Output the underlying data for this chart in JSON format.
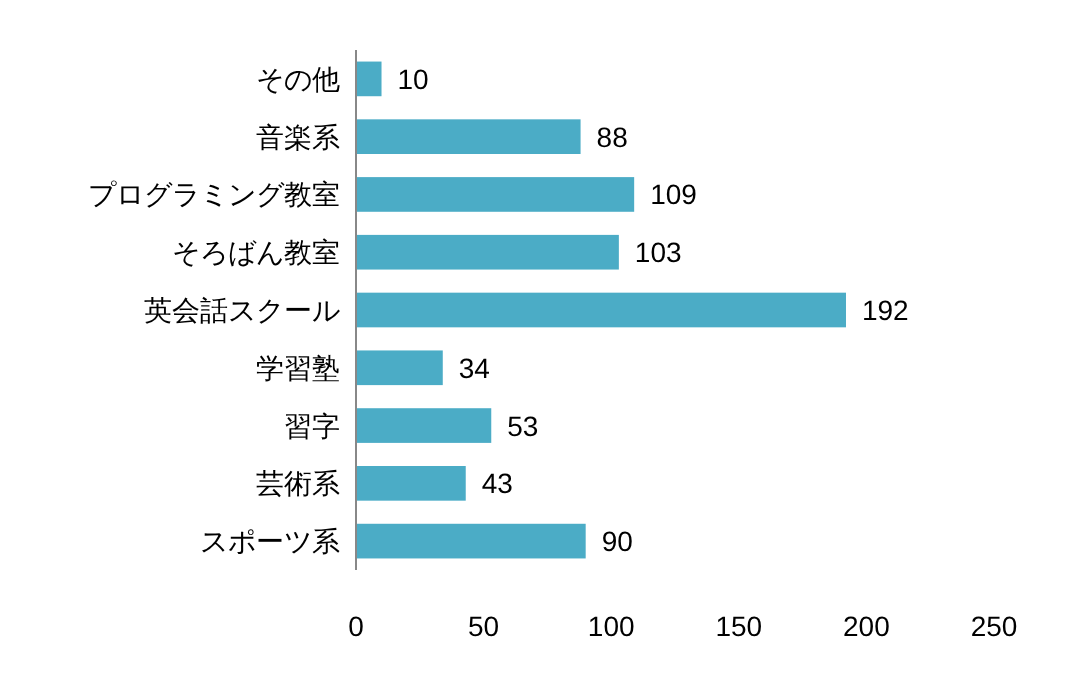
{
  "chart_data": {
    "type": "bar",
    "orientation": "horizontal",
    "categories": [
      "その他",
      "音楽系",
      "プログラミング教室",
      "そろばん教室",
      "英会話スクール",
      "学習塾",
      "習字",
      "芸術系",
      "スポーツ系"
    ],
    "values": [
      10,
      88,
      109,
      103,
      192,
      34,
      53,
      43,
      90
    ],
    "color": "#4bacc6",
    "xlim": [
      0,
      250
    ],
    "xticks": [
      0,
      50,
      100,
      150,
      200,
      250
    ],
    "data_labels": true,
    "grid": false
  }
}
